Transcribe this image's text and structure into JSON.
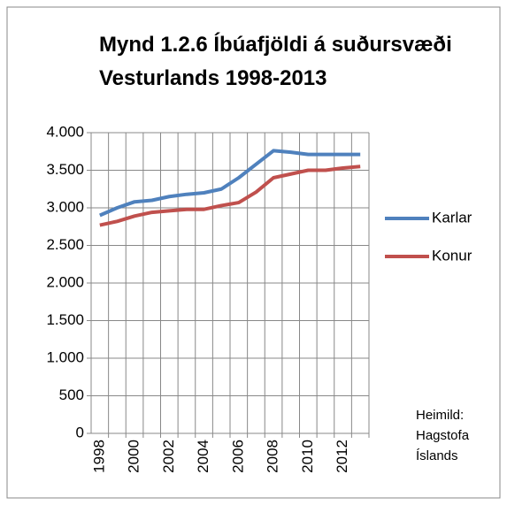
{
  "chart_data": {
    "type": "line",
    "title": "Mynd 1.2.6 Íbúafjöldi á suðursvæði Vesturlands 1998-2013",
    "note": "Heimild: Hagstofa Íslands",
    "categories": [
      "1998",
      null,
      "2000",
      null,
      "2002",
      null,
      "2004",
      null,
      "2006",
      null,
      "2008",
      null,
      "2010",
      null,
      "2012",
      null
    ],
    "series": [
      {
        "name": "Karlar",
        "color": "#4f81bd",
        "values": [
          2900,
          3000,
          3080,
          3100,
          3150,
          3180,
          3200,
          3250,
          3400,
          3580,
          3760,
          3740,
          3710,
          3710,
          3710,
          3710
        ]
      },
      {
        "name": "Konur",
        "color": "#c0504d",
        "values": [
          2770,
          2820,
          2890,
          2940,
          2960,
          2980,
          2980,
          3030,
          3070,
          3210,
          3400,
          3450,
          3500,
          3500,
          3530,
          3550
        ]
      }
    ],
    "ylim": [
      0,
      4000
    ],
    "yticks": [
      0,
      500,
      {
        "value": 1000,
        "label": "1.000"
      },
      {
        "value": 1500,
        "label": "1.500"
      },
      {
        "value": 2000,
        "label": "2.000"
      },
      {
        "value": 2500,
        "label": "2.500"
      },
      {
        "value": 3000,
        "label": "3.000"
      },
      {
        "value": 3500,
        "label": "3.500"
      },
      {
        "value": 4000,
        "label": "4.000"
      }
    ],
    "grid": true,
    "legend": "right"
  }
}
